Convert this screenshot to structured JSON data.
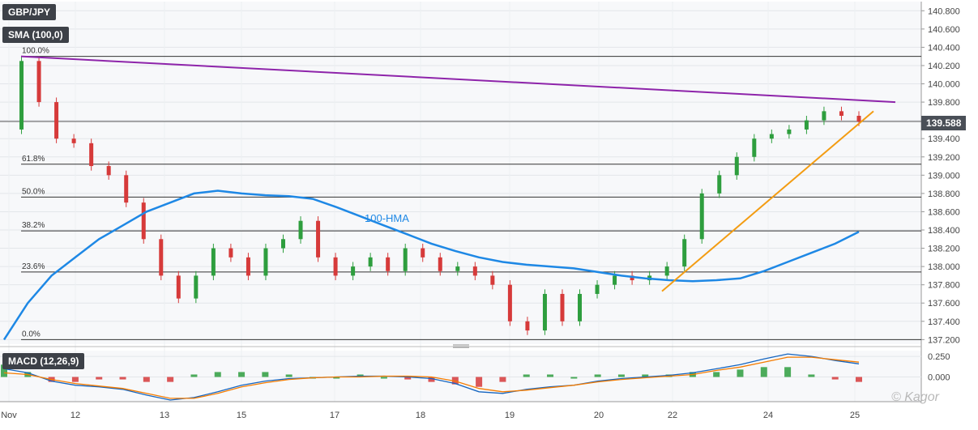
{
  "header": {
    "symbol": "GBP/JPY",
    "indicator": "SMA (100,0)"
  },
  "price_tag": "139.588",
  "watermark": "© Kagor",
  "colors": {
    "up": "#2e9e3e",
    "down": "#d63a3a",
    "hma": "#1e88e5",
    "resistance": "#8e24aa",
    "support": "#f39c12",
    "macd": "#1565c0",
    "signal": "#f57c00"
  },
  "chart_data": [
    {
      "type": "line",
      "title": "GBP/JPY",
      "y_axis": {
        "range": [
          137.15,
          140.9
        ],
        "ticks": [
          "140.800",
          "140.600",
          "140.400",
          "140.200",
          "140.000",
          "139.800",
          "139.600",
          "139.400",
          "139.200",
          "139.000",
          "138.800",
          "138.600",
          "138.400",
          "138.200",
          "138.000",
          "137.800",
          "137.600",
          "137.400",
          "137.200"
        ],
        "side": "right"
      },
      "x_axis": {
        "ticks": [
          "Nov",
          "12",
          "13",
          "15",
          "17",
          "18",
          "19",
          "20",
          "22",
          "24",
          "25"
        ]
      },
      "grid": true,
      "fibonacci": [
        {
          "label": "100.0%",
          "value": 140.3
        },
        {
          "label": "61.8%",
          "value": 139.12
        },
        {
          "label": "50.0%",
          "value": 138.76
        },
        {
          "label": "38.2%",
          "value": 138.39
        },
        {
          "label": "23.6%",
          "value": 137.94
        },
        {
          "label": "0.0%",
          "value": 137.2
        }
      ],
      "current_price": 139.588,
      "hma_label": "100-HMA",
      "hma_series": [
        137.2,
        137.6,
        137.9,
        138.1,
        138.3,
        138.45,
        138.6,
        138.7,
        138.8,
        138.83,
        138.8,
        138.78,
        138.77,
        138.74,
        138.65,
        138.55,
        138.45,
        138.35,
        138.25,
        138.17,
        138.1,
        138.05,
        138.02,
        138.0,
        137.98,
        137.94,
        137.9,
        137.87,
        137.85,
        137.84,
        137.85,
        137.87,
        137.95,
        138.05,
        138.15,
        138.25,
        138.38
      ],
      "price_series": [
        139.5,
        140.25,
        139.8,
        139.4,
        139.35,
        139.1,
        139.0,
        138.7,
        138.3,
        137.9,
        137.65,
        137.9,
        138.2,
        138.1,
        137.9,
        138.2,
        138.3,
        138.5,
        138.1,
        137.9,
        138.0,
        138.1,
        137.95,
        138.2,
        138.1,
        137.95,
        138.0,
        137.9,
        137.8,
        137.4,
        137.3,
        137.7,
        137.4,
        137.7,
        137.8,
        137.9,
        137.85,
        137.9,
        138.0,
        138.3,
        138.8,
        139.0,
        139.2,
        139.4,
        139.45,
        139.5,
        139.6,
        139.7,
        139.65,
        139.588
      ]
    },
    {
      "type": "line",
      "title": "MACD (12,26,9)",
      "y_axis": {
        "range": [
          -0.3,
          0.32
        ],
        "ticks": [
          "0.250",
          "0.000"
        ]
      },
      "series": [
        {
          "values": [
            0.1,
            0.05,
            -0.05,
            -0.1,
            -0.12,
            -0.15,
            -0.22,
            -0.28,
            -0.25,
            -0.18,
            -0.1,
            -0.05,
            -0.02,
            -0.01,
            0.0,
            0.01,
            0.01,
            0.0,
            -0.02,
            -0.08,
            -0.18,
            -0.2,
            -0.15,
            -0.12,
            -0.1,
            -0.05,
            -0.02,
            0.0,
            0.02,
            0.05,
            0.1,
            0.15,
            0.22,
            0.28,
            0.25,
            0.2,
            0.16
          ]
        },
        {
          "values": [
            0.05,
            0.03,
            -0.03,
            -0.08,
            -0.11,
            -0.14,
            -0.2,
            -0.26,
            -0.26,
            -0.2,
            -0.12,
            -0.07,
            -0.03,
            -0.01,
            0.0,
            0.0,
            0.01,
            0.01,
            0.0,
            -0.05,
            -0.14,
            -0.18,
            -0.16,
            -0.13,
            -0.1,
            -0.06,
            -0.03,
            -0.01,
            0.01,
            0.03,
            0.08,
            0.12,
            0.18,
            0.24,
            0.24,
            0.21,
            0.18
          ]
        }
      ]
    }
  ]
}
